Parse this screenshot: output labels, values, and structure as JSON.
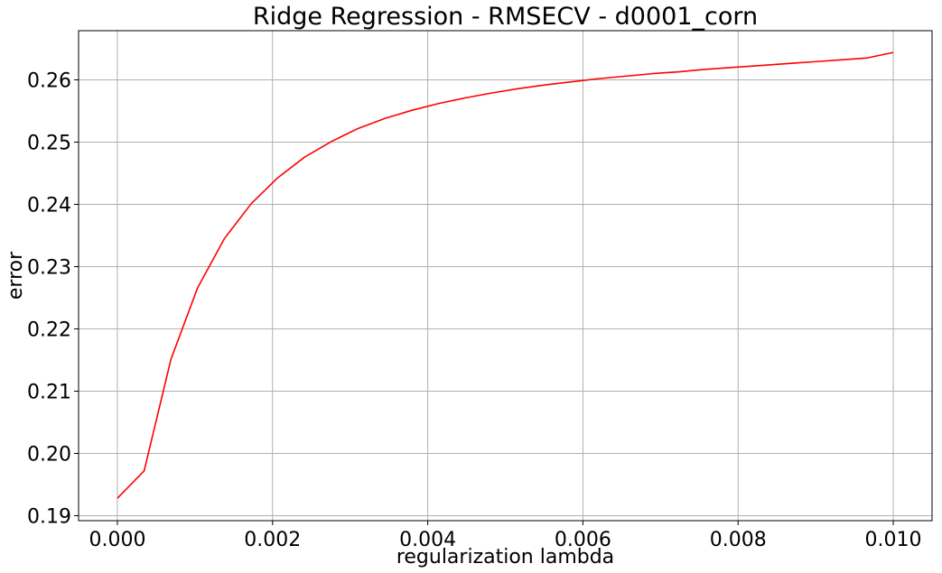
{
  "chart_data": {
    "type": "line",
    "title": "Ridge Regression - RMSECV - d0001_corn",
    "xlabel": "regularization lambda",
    "ylabel": "error",
    "xlim": [
      -0.0005,
      0.0105
    ],
    "ylim": [
      0.1892,
      0.2679
    ],
    "xticks": [
      "0.000",
      "0.002",
      "0.004",
      "0.006",
      "0.008",
      "0.010"
    ],
    "yticks": [
      "0.19",
      "0.20",
      "0.21",
      "0.22",
      "0.23",
      "0.24",
      "0.25",
      "0.26"
    ],
    "grid": true,
    "series": [
      {
        "color": "#ff0000",
        "x": [
          0.0,
          0.000345,
          0.00069,
          0.001034,
          0.001379,
          0.001724,
          0.002069,
          0.002414,
          0.002759,
          0.003103,
          0.003448,
          0.003793,
          0.004138,
          0.004483,
          0.004828,
          0.005172,
          0.005517,
          0.005862,
          0.006207,
          0.006552,
          0.006897,
          0.007241,
          0.007586,
          0.007931,
          0.008276,
          0.008621,
          0.008966,
          0.00931,
          0.009655,
          0.01
        ],
        "y": [
          0.1928,
          0.1972,
          0.2151,
          0.2266,
          0.2345,
          0.2401,
          0.2443,
          0.2476,
          0.2501,
          0.2522,
          0.2538,
          0.2551,
          0.2562,
          0.2571,
          0.2579,
          0.2586,
          0.2592,
          0.2597,
          0.2602,
          0.2606,
          0.261,
          0.2613,
          0.2617,
          0.262,
          0.2623,
          0.2626,
          0.2629,
          0.2632,
          0.2635,
          0.2644
        ]
      }
    ]
  }
}
